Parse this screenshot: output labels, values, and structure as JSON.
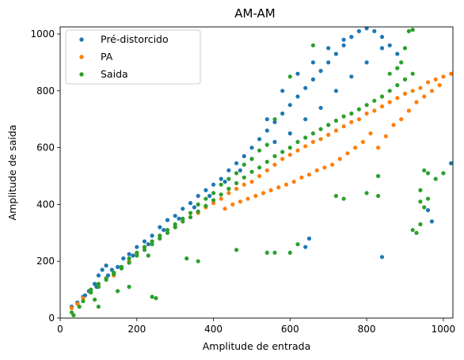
{
  "chart_data": {
    "type": "scatter",
    "title": "AM-AM",
    "xlabel": "Amplitude de entrada",
    "ylabel": "Amplitude de saída",
    "xlim": [
      0,
      1025
    ],
    "ylim": [
      0,
      1025
    ],
    "xticks": [
      "0",
      "200",
      "400",
      "600",
      "800",
      "1000"
    ],
    "yticks": [
      "0",
      "200",
      "400",
      "600",
      "800",
      "1000"
    ],
    "grid": false,
    "legend_position": "top-left",
    "series": [
      {
        "name": "Pré-distorcido",
        "color": "#1f77b4",
        "points": [
          [
            30,
            40
          ],
          [
            45,
            55
          ],
          [
            60,
            75
          ],
          [
            75,
            95
          ],
          [
            90,
            120
          ],
          [
            100,
            150
          ],
          [
            110,
            170
          ],
          [
            120,
            185
          ],
          [
            135,
            170
          ],
          [
            150,
            180
          ],
          [
            165,
            210
          ],
          [
            180,
            225
          ],
          [
            200,
            250
          ],
          [
            220,
            270
          ],
          [
            240,
            290
          ],
          [
            260,
            320
          ],
          [
            280,
            345
          ],
          [
            300,
            360
          ],
          [
            320,
            385
          ],
          [
            340,
            405
          ],
          [
            360,
            430
          ],
          [
            380,
            450
          ],
          [
            400,
            470
          ],
          [
            420,
            490
          ],
          [
            440,
            520
          ],
          [
            460,
            545
          ],
          [
            480,
            570
          ],
          [
            500,
            600
          ],
          [
            520,
            630
          ],
          [
            540,
            660
          ],
          [
            560,
            690
          ],
          [
            580,
            720
          ],
          [
            600,
            750
          ],
          [
            620,
            780
          ],
          [
            640,
            810
          ],
          [
            660,
            840
          ],
          [
            680,
            870
          ],
          [
            700,
            900
          ],
          [
            720,
            930
          ],
          [
            740,
            960
          ],
          [
            760,
            990
          ],
          [
            780,
            1010
          ],
          [
            800,
            1020
          ],
          [
            820,
            1010
          ],
          [
            840,
            990
          ],
          [
            860,
            960
          ],
          [
            880,
            930
          ],
          [
            560,
            620
          ],
          [
            600,
            650
          ],
          [
            640,
            700
          ],
          [
            680,
            740
          ],
          [
            720,
            800
          ],
          [
            760,
            850
          ],
          [
            800,
            900
          ],
          [
            840,
            950
          ],
          [
            620,
            860
          ],
          [
            660,
            900
          ],
          [
            700,
            950
          ],
          [
            740,
            980
          ],
          [
            580,
            800
          ],
          [
            540,
            700
          ],
          [
            500,
            560
          ],
          [
            470,
            520
          ],
          [
            430,
            480
          ],
          [
            390,
            430
          ],
          [
            350,
            390
          ],
          [
            310,
            350
          ],
          [
            270,
            310
          ],
          [
            230,
            260
          ],
          [
            190,
            220
          ],
          [
            160,
            180
          ],
          [
            125,
            150
          ],
          [
            95,
            110
          ],
          [
            65,
            80
          ],
          [
            650,
            280
          ],
          [
            640,
            250
          ],
          [
            840,
            215
          ],
          [
            960,
            380
          ],
          [
            970,
            340
          ],
          [
            1020,
            545
          ]
        ]
      },
      {
        "name": "PA",
        "color": "#ff7f0e",
        "points": [
          [
            30,
            35
          ],
          [
            45,
            50
          ],
          [
            60,
            70
          ],
          [
            80,
            95
          ],
          [
            100,
            120
          ],
          [
            120,
            140
          ],
          [
            140,
            150
          ],
          [
            160,
            175
          ],
          [
            180,
            200
          ],
          [
            200,
            225
          ],
          [
            220,
            250
          ],
          [
            240,
            270
          ],
          [
            260,
            290
          ],
          [
            280,
            310
          ],
          [
            300,
            320
          ],
          [
            320,
            340
          ],
          [
            340,
            355
          ],
          [
            360,
            370
          ],
          [
            380,
            390
          ],
          [
            400,
            405
          ],
          [
            420,
            420
          ],
          [
            440,
            440
          ],
          [
            460,
            455
          ],
          [
            480,
            470
          ],
          [
            500,
            480
          ],
          [
            520,
            500
          ],
          [
            540,
            520
          ],
          [
            560,
            540
          ],
          [
            580,
            560
          ],
          [
            600,
            575
          ],
          [
            620,
            590
          ],
          [
            640,
            605
          ],
          [
            660,
            620
          ],
          [
            680,
            630
          ],
          [
            700,
            645
          ],
          [
            720,
            660
          ],
          [
            740,
            675
          ],
          [
            760,
            690
          ],
          [
            780,
            700
          ],
          [
            800,
            720
          ],
          [
            820,
            730
          ],
          [
            840,
            745
          ],
          [
            860,
            760
          ],
          [
            880,
            775
          ],
          [
            900,
            790
          ],
          [
            920,
            800
          ],
          [
            940,
            810
          ],
          [
            960,
            830
          ],
          [
            980,
            840
          ],
          [
            1000,
            850
          ],
          [
            1020,
            860
          ],
          [
            850,
            640
          ],
          [
            870,
            680
          ],
          [
            890,
            700
          ],
          [
            910,
            730
          ],
          [
            930,
            760
          ],
          [
            950,
            780
          ],
          [
            970,
            800
          ],
          [
            990,
            820
          ],
          [
            830,
            600
          ],
          [
            810,
            650
          ],
          [
            790,
            620
          ],
          [
            770,
            600
          ],
          [
            750,
            580
          ],
          [
            730,
            560
          ],
          [
            710,
            540
          ],
          [
            690,
            530
          ],
          [
            670,
            520
          ],
          [
            650,
            505
          ],
          [
            630,
            495
          ],
          [
            610,
            480
          ],
          [
            590,
            470
          ],
          [
            570,
            460
          ],
          [
            550,
            450
          ],
          [
            530,
            440
          ],
          [
            510,
            430
          ],
          [
            490,
            420
          ],
          [
            470,
            410
          ],
          [
            450,
            400
          ],
          [
            430,
            385
          ]
        ]
      },
      {
        "name": "Saida",
        "color": "#2ca02c",
        "points": [
          [
            30,
            20
          ],
          [
            35,
            10
          ],
          [
            50,
            40
          ],
          [
            60,
            60
          ],
          [
            80,
            90
          ],
          [
            100,
            110
          ],
          [
            120,
            135
          ],
          [
            140,
            155
          ],
          [
            160,
            175
          ],
          [
            180,
            195
          ],
          [
            200,
            220
          ],
          [
            220,
            240
          ],
          [
            240,
            260
          ],
          [
            260,
            280
          ],
          [
            280,
            300
          ],
          [
            300,
            320
          ],
          [
            320,
            340
          ],
          [
            340,
            355
          ],
          [
            360,
            375
          ],
          [
            380,
            395
          ],
          [
            400,
            415
          ],
          [
            420,
            435
          ],
          [
            440,
            455
          ],
          [
            460,
            475
          ],
          [
            480,
            495
          ],
          [
            500,
            515
          ],
          [
            520,
            530
          ],
          [
            540,
            550
          ],
          [
            560,
            570
          ],
          [
            580,
            585
          ],
          [
            600,
            600
          ],
          [
            620,
            620
          ],
          [
            640,
            635
          ],
          [
            660,
            650
          ],
          [
            680,
            665
          ],
          [
            700,
            680
          ],
          [
            720,
            695
          ],
          [
            740,
            710
          ],
          [
            760,
            720
          ],
          [
            780,
            735
          ],
          [
            800,
            750
          ],
          [
            820,
            765
          ],
          [
            840,
            780
          ],
          [
            860,
            800
          ],
          [
            880,
            820
          ],
          [
            900,
            840
          ],
          [
            920,
            860
          ],
          [
            890,
            900
          ],
          [
            900,
            950
          ],
          [
            910,
            1010
          ],
          [
            920,
            1015
          ],
          [
            880,
            880
          ],
          [
            860,
            860
          ],
          [
            660,
            960
          ],
          [
            600,
            850
          ],
          [
            560,
            700
          ],
          [
            540,
            610
          ],
          [
            520,
            590
          ],
          [
            500,
            560
          ],
          [
            480,
            540
          ],
          [
            460,
            510
          ],
          [
            440,
            490
          ],
          [
            420,
            470
          ],
          [
            400,
            440
          ],
          [
            380,
            420
          ],
          [
            360,
            400
          ],
          [
            340,
            370
          ],
          [
            320,
            350
          ],
          [
            300,
            330
          ],
          [
            280,
            310
          ],
          [
            260,
            290
          ],
          [
            240,
            270
          ],
          [
            220,
            250
          ],
          [
            200,
            230
          ],
          [
            180,
            210
          ],
          [
            160,
            180
          ],
          [
            140,
            160
          ],
          [
            120,
            140
          ],
          [
            100,
            120
          ],
          [
            80,
            100
          ],
          [
            90,
            65
          ],
          [
            100,
            40
          ],
          [
            150,
            95
          ],
          [
            180,
            110
          ],
          [
            230,
            220
          ],
          [
            240,
            75
          ],
          [
            250,
            70
          ],
          [
            330,
            210
          ],
          [
            360,
            200
          ],
          [
            460,
            240
          ],
          [
            540,
            230
          ],
          [
            560,
            230
          ],
          [
            600,
            230
          ],
          [
            620,
            260
          ],
          [
            720,
            430
          ],
          [
            740,
            420
          ],
          [
            800,
            440
          ],
          [
            830,
            430
          ],
          [
            920,
            310
          ],
          [
            930,
            300
          ],
          [
            940,
            330
          ],
          [
            950,
            390
          ],
          [
            960,
            420
          ],
          [
            980,
            490
          ],
          [
            1000,
            510
          ],
          [
            960,
            510
          ],
          [
            950,
            520
          ],
          [
            940,
            450
          ],
          [
            940,
            410
          ],
          [
            830,
            500
          ]
        ]
      }
    ]
  }
}
